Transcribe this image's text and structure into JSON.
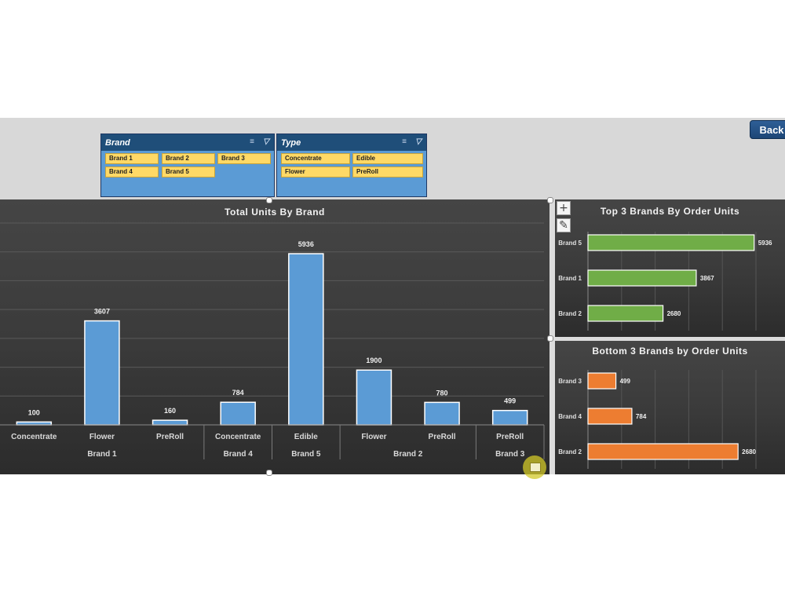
{
  "header": {
    "back_label": "Back"
  },
  "slicers": {
    "brand": {
      "title": "Brand",
      "items": [
        "Brand 1",
        "Brand 2",
        "Brand 3",
        "Brand 4",
        "Brand 5"
      ]
    },
    "type": {
      "title": "Type",
      "items": [
        "Concentrate",
        "Edible",
        "Flower",
        "PreRoll"
      ]
    }
  },
  "icons": {
    "multi_select": "multi-select-icon",
    "clear_filter": "clear-filter-icon",
    "chart_elements": "plus-icon",
    "chart_styles": "brush-icon",
    "quick_analysis": "quick-analysis-icon"
  },
  "colors": {
    "bar_blue": "#5b9bd5",
    "bar_green": "#70ad47",
    "bar_orange": "#ed7d31",
    "slicer_item": "#ffd966",
    "slicer_bg": "#5b9bd5",
    "slicer_header": "#1f4e79",
    "back_button": "#1f4e79"
  },
  "chart_data": [
    {
      "type": "bar",
      "title": "Total Units By Brand",
      "categories": [
        "Concentrate",
        "Flower",
        "PreRoll",
        "Concentrate",
        "Edible",
        "Flower",
        "PreRoll",
        "PreRoll"
      ],
      "groups": [
        {
          "label": "Brand 1",
          "categories": [
            "Concentrate",
            "Flower",
            "PreRoll"
          ]
        },
        {
          "label": "Brand 4",
          "categories": [
            "Concentrate"
          ]
        },
        {
          "label": "Brand 5",
          "categories": [
            "Edible"
          ]
        },
        {
          "label": "Brand 2",
          "categories": [
            "Flower",
            "PreRoll"
          ]
        },
        {
          "label": "Brand 3",
          "categories": [
            "PreRoll"
          ]
        }
      ],
      "values": [
        100,
        3607,
        160,
        784,
        5936,
        1900,
        780,
        499
      ],
      "ylim": [
        0,
        7000
      ],
      "grid": true
    },
    {
      "type": "bar",
      "orientation": "horizontal",
      "title": "Top 3 Brands By Order Units",
      "categories": [
        "Brand 5",
        "Brand 1",
        "Brand 2"
      ],
      "values": [
        5936,
        3867,
        2680
      ],
      "xlim": [
        0,
        6000
      ],
      "grid": true
    },
    {
      "type": "bar",
      "orientation": "horizontal",
      "title": "Bottom 3 Brands by Order Units",
      "categories": [
        "Brand 3",
        "Brand 4",
        "Brand 2"
      ],
      "values": [
        499,
        784,
        2680
      ],
      "xlim": [
        0,
        3000
      ],
      "grid": true
    }
  ]
}
